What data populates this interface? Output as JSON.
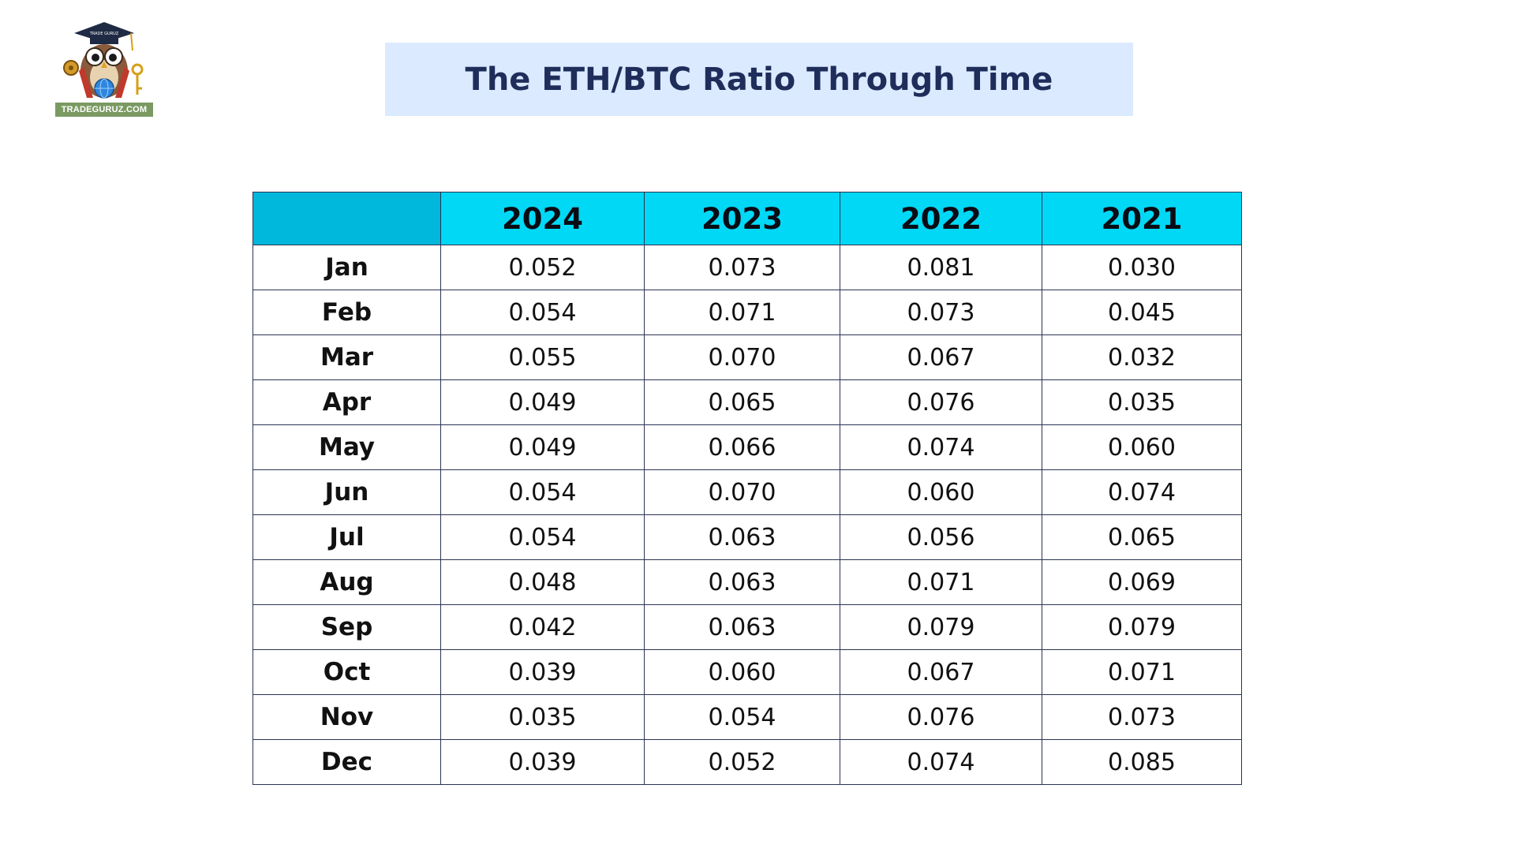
{
  "logo": {
    "caption": "TRADEGURUZ.COM",
    "cap_text": "TRADE GURUZ",
    "icon": "owl-mascot-icon"
  },
  "title": "The ETH/BTC Ratio Through Time",
  "colors": {
    "banner_bg": "#dbeafe",
    "title_text": "#1e2d5a",
    "header_bg": "#00d8f5",
    "corner_bg": "#00b7dc",
    "grid": "#2b3353"
  },
  "chart_data": {
    "type": "table",
    "title": "The ETH/BTC Ratio Through Time",
    "columns": [
      "",
      "2024",
      "2023",
      "2022",
      "2021"
    ],
    "rows": [
      {
        "month": "Jan",
        "values": [
          "0.052",
          "0.073",
          "0.081",
          "0.030"
        ]
      },
      {
        "month": "Feb",
        "values": [
          "0.054",
          "0.071",
          "0.073",
          "0.045"
        ]
      },
      {
        "month": "Mar",
        "values": [
          "0.055",
          "0.070",
          "0.067",
          "0.032"
        ]
      },
      {
        "month": "Apr",
        "values": [
          "0.049",
          "0.065",
          "0.076",
          "0.035"
        ]
      },
      {
        "month": "May",
        "values": [
          "0.049",
          "0.066",
          "0.074",
          "0.060"
        ]
      },
      {
        "month": "Jun",
        "values": [
          "0.054",
          "0.070",
          "0.060",
          "0.074"
        ]
      },
      {
        "month": "Jul",
        "values": [
          "0.054",
          "0.063",
          "0.056",
          "0.065"
        ]
      },
      {
        "month": "Aug",
        "values": [
          "0.048",
          "0.063",
          "0.071",
          "0.069"
        ]
      },
      {
        "month": "Sep",
        "values": [
          "0.042",
          "0.063",
          "0.079",
          "0.079"
        ]
      },
      {
        "month": "Oct",
        "values": [
          "0.039",
          "0.060",
          "0.067",
          "0.071"
        ]
      },
      {
        "month": "Nov",
        "values": [
          "0.035",
          "0.054",
          "0.076",
          "0.073"
        ]
      },
      {
        "month": "Dec",
        "values": [
          "0.039",
          "0.052",
          "0.074",
          "0.085"
        ]
      }
    ]
  }
}
